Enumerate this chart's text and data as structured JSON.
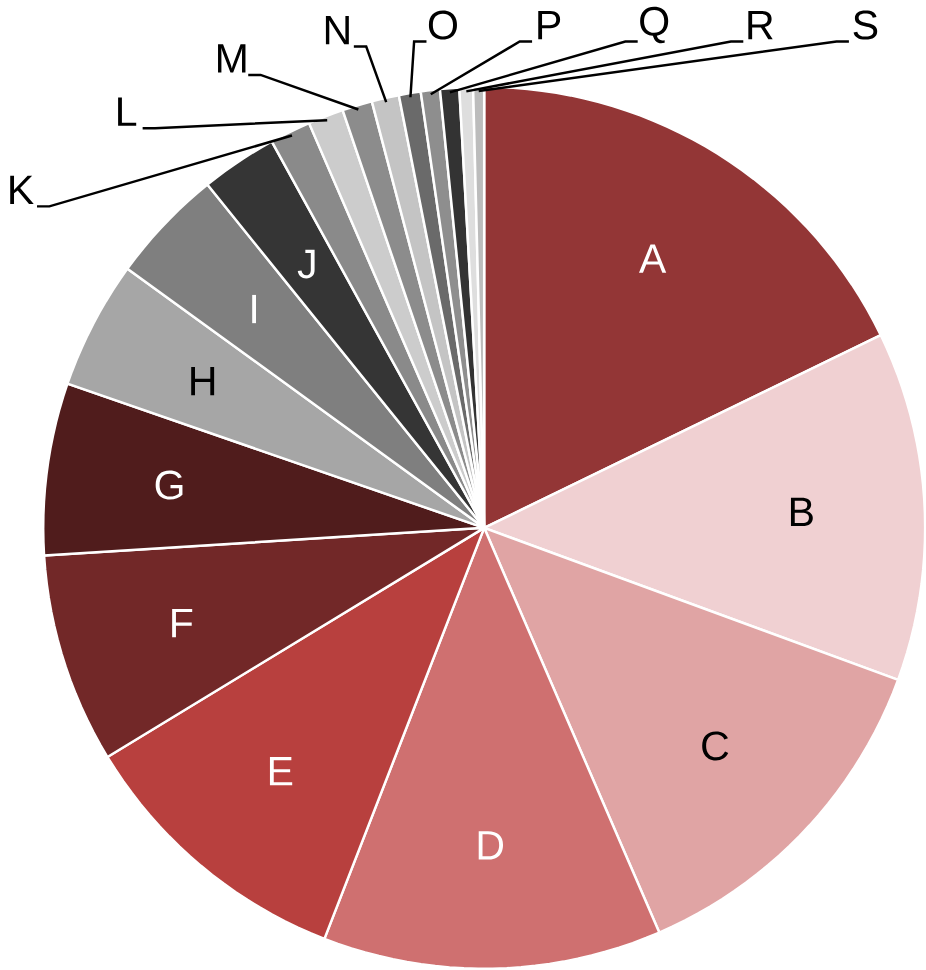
{
  "chart_data": {
    "type": "pie",
    "categories": [
      "A",
      "B",
      "C",
      "D",
      "E",
      "F",
      "G",
      "H",
      "I",
      "J",
      "K",
      "L",
      "M",
      "N",
      "O",
      "P",
      "Q",
      "R",
      "S"
    ],
    "values": [
      17.8,
      12.8,
      12.9,
      12.4,
      10.4,
      7.7,
      6.3,
      4.7,
      4.2,
      2.8,
      1.5,
      1.3,
      1.1,
      1.0,
      0.8,
      0.7,
      0.7,
      0.5,
      0.4
    ],
    "colors": [
      "#933636",
      "#f0d0d2",
      "#e0a4a4",
      "#cf7070",
      "#b8403e",
      "#722828",
      "#501c1c",
      "#a6a6a6",
      "#7f7f7f",
      "#353535",
      "#8a8a8a",
      "#cccccc",
      "#8c8c8c",
      "#c4c4c4",
      "#6a6a6a",
      "#8e8e8e",
      "#333333",
      "#dedede",
      "#bcbcbc"
    ]
  }
}
